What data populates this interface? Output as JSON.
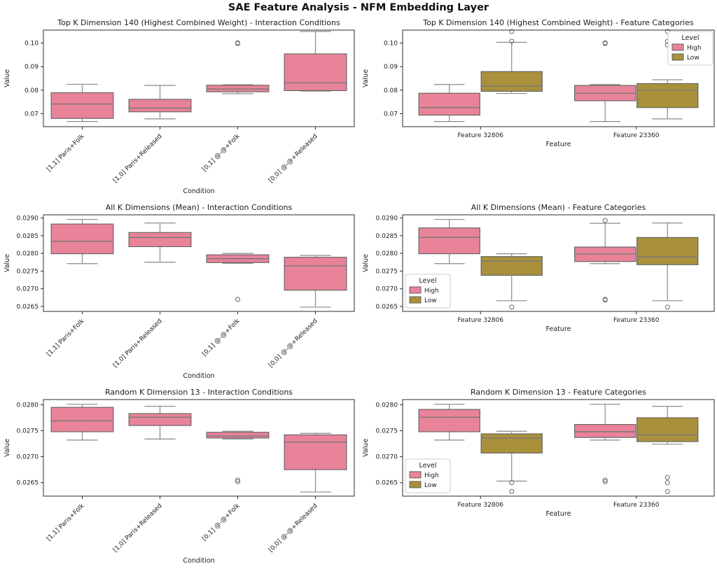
{
  "figure": {
    "title": "SAE Feature Analysis - NFM Embedding Layer"
  },
  "palette": {
    "high": "#e8839a",
    "low": "#a9913c",
    "box_edge": "#606060",
    "median_line": "#777777",
    "whisker": "#8a8a8a",
    "outlier": "#757575",
    "spine": "#2b2b2b",
    "text": "#1c1c1c",
    "legend_border": "#cccccc",
    "background": "#ffffff"
  },
  "chart_data": [
    {
      "type": "box",
      "title": "Top K Dimension 140 (Highest Combined Weight) - Interaction Conditions",
      "xlabel": "Condition",
      "ylabel": "Value",
      "ylim": [
        0.0645,
        0.1055
      ],
      "yticks": [
        0.07,
        0.08,
        0.09,
        0.1
      ],
      "ytick_labels": [
        "0.07",
        "0.08",
        "0.09",
        "0.10"
      ],
      "categories": [
        "[1,1] Paris+Folk",
        "[1,0] Paris+Released",
        "[0,1] @-@+Folk",
        "[0,0] @-@+Released"
      ],
      "rotate_x_labels": true,
      "legend": null,
      "boxes": [
        {
          "category": 0,
          "color_key": "high",
          "lo": 0.0667,
          "q1": 0.068,
          "med": 0.0741,
          "q3": 0.0789,
          "hi": 0.0825,
          "outliers": []
        },
        {
          "category": 1,
          "color_key": "high",
          "lo": 0.0678,
          "q1": 0.0708,
          "med": 0.0724,
          "q3": 0.0761,
          "hi": 0.082,
          "outliers": []
        },
        {
          "category": 2,
          "color_key": "high",
          "lo": 0.0785,
          "q1": 0.0793,
          "med": 0.0805,
          "q3": 0.0821,
          "hi": 0.0823,
          "outliers": [
            0.0998,
            0.1001
          ]
        },
        {
          "category": 3,
          "color_key": "high",
          "lo": 0.0796,
          "q1": 0.0798,
          "med": 0.0831,
          "q3": 0.0954,
          "hi": 0.1049,
          "outliers": []
        }
      ]
    },
    {
      "type": "box",
      "title": "Top K Dimension 140 (Highest Combined Weight) - Feature Categories",
      "xlabel": "Feature",
      "ylabel": "Value",
      "ylim": [
        0.0645,
        0.1055
      ],
      "yticks": [
        0.07,
        0.08,
        0.09,
        0.1
      ],
      "ytick_labels": [
        "0.07",
        "0.08",
        "0.09",
        "0.10"
      ],
      "categories": [
        "Feature 32806",
        "Feature 23360"
      ],
      "rotate_x_labels": false,
      "legend": {
        "title": "Level",
        "position": "upper-right",
        "entries": [
          {
            "label": "High",
            "color_key": "high"
          },
          {
            "label": "Low",
            "color_key": "low"
          }
        ]
      },
      "boxes": [
        {
          "category": 0,
          "color_key": "high",
          "lo": 0.0667,
          "q1": 0.0694,
          "med": 0.0726,
          "q3": 0.0787,
          "hi": 0.0824,
          "outliers": []
        },
        {
          "category": 0,
          "color_key": "low",
          "lo": 0.0786,
          "q1": 0.0795,
          "med": 0.0817,
          "q3": 0.0879,
          "hi": 0.1003,
          "outliers": [
            0.1049,
            0.1008
          ]
        },
        {
          "category": 1,
          "color_key": "high",
          "lo": 0.0667,
          "q1": 0.0755,
          "med": 0.0787,
          "q3": 0.082,
          "hi": 0.0824,
          "outliers": [
            0.0998,
            0.1001
          ]
        },
        {
          "category": 1,
          "color_key": "low",
          "lo": 0.0678,
          "q1": 0.0726,
          "med": 0.08,
          "q3": 0.0828,
          "hi": 0.0844,
          "outliers": [
            0.1049,
            0.1007,
            0.0992
          ]
        }
      ]
    },
    {
      "type": "box",
      "title": "All K Dimensions (Mean) - Interaction Conditions",
      "xlabel": "Condition",
      "ylabel": "Value",
      "ylim": [
        0.02636,
        0.02909
      ],
      "yticks": [
        0.0265,
        0.027,
        0.0275,
        0.028,
        0.0285,
        0.029
      ],
      "ytick_labels": [
        "0.0265",
        "0.0270",
        "0.0275",
        "0.0280",
        "0.0285",
        "0.0290"
      ],
      "categories": [
        "[1,1] Paris+Folk",
        "[1,0] Paris+Released",
        "[0,1] @-@+Folk",
        "[0,0] @-@+Released"
      ],
      "rotate_x_labels": true,
      "legend": null,
      "boxes": [
        {
          "category": 0,
          "color_key": "high",
          "lo": 0.02771,
          "q1": 0.02799,
          "med": 0.02834,
          "q3": 0.02883,
          "hi": 0.02896,
          "outliers": []
        },
        {
          "category": 1,
          "color_key": "high",
          "lo": 0.02775,
          "q1": 0.02819,
          "med": 0.02845,
          "q3": 0.02859,
          "hi": 0.02886,
          "outliers": []
        },
        {
          "category": 2,
          "color_key": "high",
          "lo": 0.02772,
          "q1": 0.02774,
          "med": 0.02785,
          "q3": 0.02796,
          "hi": 0.028,
          "outliers": [
            0.0267
          ]
        },
        {
          "category": 3,
          "color_key": "high",
          "lo": 0.02648,
          "q1": 0.02696,
          "med": 0.02765,
          "q3": 0.02789,
          "hi": 0.02794,
          "outliers": []
        }
      ]
    },
    {
      "type": "box",
      "title": "All K Dimensions (Mean) - Feature Categories",
      "xlabel": "Feature",
      "ylabel": "Value",
      "ylim": [
        0.02636,
        0.02909
      ],
      "yticks": [
        0.0265,
        0.027,
        0.0275,
        0.028,
        0.0285,
        0.029
      ],
      "ytick_labels": [
        "0.0265",
        "0.0270",
        "0.0275",
        "0.0280",
        "0.0285",
        "0.0290"
      ],
      "categories": [
        "Feature 32806",
        "Feature 23360"
      ],
      "rotate_x_labels": false,
      "legend": {
        "title": "Level",
        "position": "lower-left",
        "entries": [
          {
            "label": "High",
            "color_key": "high"
          },
          {
            "label": "Low",
            "color_key": "low"
          }
        ]
      },
      "boxes": [
        {
          "category": 0,
          "color_key": "high",
          "lo": 0.02771,
          "q1": 0.02799,
          "med": 0.02845,
          "q3": 0.02872,
          "hi": 0.02896,
          "outliers": []
        },
        {
          "category": 0,
          "color_key": "low",
          "lo": 0.02666,
          "q1": 0.02738,
          "med": 0.02778,
          "q3": 0.02791,
          "hi": 0.02799,
          "outliers": [
            0.02648
          ]
        },
        {
          "category": 1,
          "color_key": "high",
          "lo": 0.02771,
          "q1": 0.02777,
          "med": 0.02798,
          "q3": 0.02818,
          "hi": 0.02885,
          "outliers": [
            0.02893,
            0.0267,
            0.02668
          ]
        },
        {
          "category": 1,
          "color_key": "low",
          "lo": 0.02666,
          "q1": 0.02768,
          "med": 0.0279,
          "q3": 0.02845,
          "hi": 0.02886,
          "outliers": [
            0.02648
          ]
        }
      ]
    },
    {
      "type": "box",
      "title": "Random K Dimension 13 - Interaction Conditions",
      "xlabel": "Condition",
      "ylabel": "Value",
      "ylim": [
        0.02624,
        0.0281
      ],
      "yticks": [
        0.0265,
        0.027,
        0.0275,
        0.028
      ],
      "ytick_labels": [
        "0.0265",
        "0.0270",
        "0.0275",
        "0.0280"
      ],
      "categories": [
        "[1,1] Paris+Folk",
        "[1,0] Paris+Released",
        "[0,1] @-@+Folk",
        "[0,0] @-@+Released"
      ],
      "rotate_x_labels": true,
      "legend": null,
      "boxes": [
        {
          "category": 0,
          "color_key": "high",
          "lo": 0.02732,
          "q1": 0.02748,
          "med": 0.02769,
          "q3": 0.02795,
          "hi": 0.02801,
          "outliers": []
        },
        {
          "category": 1,
          "color_key": "high",
          "lo": 0.02734,
          "q1": 0.0276,
          "med": 0.02776,
          "q3": 0.02783,
          "hi": 0.02797,
          "outliers": []
        },
        {
          "category": 2,
          "color_key": "high",
          "lo": 0.02734,
          "q1": 0.02736,
          "med": 0.0274,
          "q3": 0.02747,
          "hi": 0.02749,
          "outliers": [
            0.02655,
            0.02652
          ]
        },
        {
          "category": 3,
          "color_key": "high",
          "lo": 0.02632,
          "q1": 0.02675,
          "med": 0.02728,
          "q3": 0.02742,
          "hi": 0.02745,
          "outliers": []
        }
      ]
    },
    {
      "type": "box",
      "title": "Random K Dimension 13 - Feature Categories",
      "xlabel": "Feature",
      "ylabel": "Value",
      "ylim": [
        0.02624,
        0.0281
      ],
      "yticks": [
        0.0265,
        0.027,
        0.0275,
        0.028
      ],
      "ytick_labels": [
        "0.0265",
        "0.0270",
        "0.0275",
        "0.0280"
      ],
      "categories": [
        "Feature 32806",
        "Feature 23360"
      ],
      "rotate_x_labels": false,
      "legend": {
        "title": "Level",
        "position": "lower-left",
        "entries": [
          {
            "label": "High",
            "color_key": "high"
          },
          {
            "label": "Low",
            "color_key": "low"
          }
        ]
      },
      "boxes": [
        {
          "category": 0,
          "color_key": "high",
          "lo": 0.02732,
          "q1": 0.02748,
          "med": 0.02776,
          "q3": 0.02791,
          "hi": 0.02801,
          "outliers": []
        },
        {
          "category": 0,
          "color_key": "low",
          "lo": 0.02653,
          "q1": 0.02707,
          "med": 0.02736,
          "q3": 0.02744,
          "hi": 0.02749,
          "outliers": [
            0.0265,
            0.02633
          ]
        },
        {
          "category": 1,
          "color_key": "high",
          "lo": 0.02732,
          "q1": 0.02737,
          "med": 0.02748,
          "q3": 0.02762,
          "hi": 0.02801,
          "outliers": [
            0.02655,
            0.02652
          ]
        },
        {
          "category": 1,
          "color_key": "low",
          "lo": 0.02724,
          "q1": 0.02729,
          "med": 0.02742,
          "q3": 0.02775,
          "hi": 0.02797,
          "outliers": [
            0.0266,
            0.0265,
            0.02633
          ]
        }
      ]
    }
  ]
}
